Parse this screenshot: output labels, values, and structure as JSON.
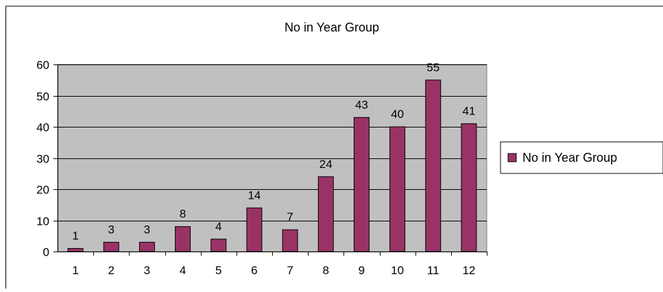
{
  "chart_data": {
    "type": "bar",
    "title": "No in Year Group",
    "xlabel": "",
    "ylabel": "",
    "categories": [
      "1",
      "2",
      "3",
      "4",
      "5",
      "6",
      "7",
      "8",
      "9",
      "10",
      "11",
      "12"
    ],
    "series": [
      {
        "name": "No in Year Group",
        "values": [
          1,
          3,
          3,
          8,
          4,
          14,
          7,
          24,
          43,
          40,
          55,
          41
        ]
      }
    ],
    "ylim": [
      0,
      60
    ],
    "yticks": [
      "0",
      "10",
      "20",
      "30",
      "40",
      "50",
      "60"
    ],
    "grid": true,
    "data_labels": true,
    "legend_position": "right",
    "colors": {
      "bar": "#993366",
      "plot_area": "#c0c0c0",
      "gridline": "#000000",
      "axis": "#000000",
      "chart_background": "#ffffff"
    }
  }
}
